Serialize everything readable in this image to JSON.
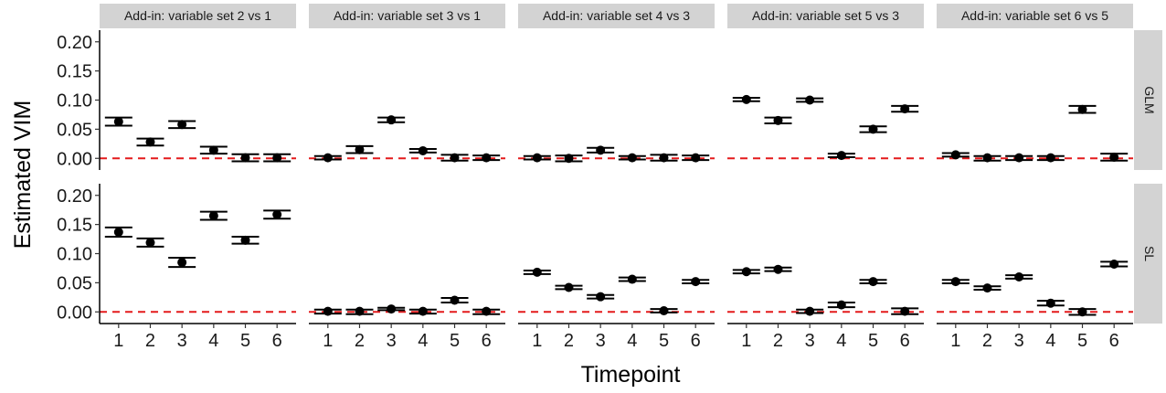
{
  "chart_data": {
    "type": "scatter",
    "subtype": "point-with-errorbars",
    "xlabel": "Timepoint",
    "ylabel": "Estimated VIM",
    "x": [
      1,
      2,
      3,
      4,
      5,
      6
    ],
    "ylim": [
      -0.02,
      0.22
    ],
    "y_ticks": [
      "0.00",
      "0.05",
      "0.10",
      "0.15",
      "0.20"
    ],
    "reference_line": {
      "y": 0,
      "color": "#e41a1c",
      "style": "dashed"
    },
    "point_color": "#000000",
    "strip_color": "#d3d3d3",
    "grid": false,
    "columns": [
      "Add-in: variable set 2 vs 1",
      "Add-in: variable set 3 vs 1",
      "Add-in: variable set 4 vs 3",
      "Add-in: variable set 5 vs 3",
      "Add-in: variable set 6 vs 5"
    ],
    "rows": [
      "GLM",
      "SL"
    ],
    "panels": [
      {
        "row": "GLM",
        "column": "Add-in: variable set 2 vs 1",
        "values": [
          0.063,
          0.028,
          0.058,
          0.014,
          0.001,
          0.001
        ],
        "lower": [
          0.056,
          0.022,
          0.052,
          0.008,
          -0.005,
          -0.005
        ],
        "upper": [
          0.07,
          0.034,
          0.064,
          0.02,
          0.007,
          0.007
        ]
      },
      {
        "row": "GLM",
        "column": "Add-in: variable set 3 vs 1",
        "values": [
          0.001,
          0.015,
          0.066,
          0.013,
          0.001,
          0.001
        ],
        "lower": [
          -0.002,
          0.009,
          0.062,
          0.01,
          -0.004,
          -0.003
        ],
        "upper": [
          0.004,
          0.021,
          0.07,
          0.016,
          0.006,
          0.005
        ]
      },
      {
        "row": "GLM",
        "column": "Add-in: variable set 4 vs 3",
        "values": [
          0.001,
          0.0,
          0.014,
          0.001,
          0.001,
          0.001
        ],
        "lower": [
          -0.002,
          -0.005,
          0.01,
          -0.002,
          -0.004,
          -0.003
        ],
        "upper": [
          0.004,
          0.005,
          0.018,
          0.004,
          0.006,
          0.005
        ]
      },
      {
        "row": "GLM",
        "column": "Add-in: variable set 5 vs 3",
        "values": [
          0.101,
          0.065,
          0.1,
          0.005,
          0.05,
          0.085
        ],
        "lower": [
          0.098,
          0.06,
          0.097,
          0.002,
          0.045,
          0.08
        ],
        "upper": [
          0.104,
          0.07,
          0.103,
          0.008,
          0.055,
          0.09
        ]
      },
      {
        "row": "GLM",
        "column": "Add-in: variable set 6 vs 5",
        "values": [
          0.006,
          0.001,
          0.001,
          0.001,
          0.084,
          0.002
        ],
        "lower": [
          0.003,
          -0.004,
          -0.003,
          -0.003,
          0.078,
          -0.004
        ],
        "upper": [
          0.009,
          0.004,
          0.004,
          0.004,
          0.09,
          0.008
        ]
      },
      {
        "row": "SL",
        "column": "Add-in: variable set 2 vs 1",
        "values": [
          0.137,
          0.119,
          0.085,
          0.165,
          0.123,
          0.167
        ],
        "lower": [
          0.129,
          0.112,
          0.077,
          0.158,
          0.117,
          0.16
        ],
        "upper": [
          0.145,
          0.126,
          0.093,
          0.172,
          0.129,
          0.174
        ]
      },
      {
        "row": "SL",
        "column": "Add-in: variable set 3 vs 1",
        "values": [
          0.001,
          0.001,
          0.005,
          0.001,
          0.02,
          0.001
        ],
        "lower": [
          -0.003,
          -0.004,
          0.003,
          -0.003,
          0.016,
          -0.004
        ],
        "upper": [
          0.004,
          0.004,
          0.007,
          0.004,
          0.024,
          0.004
        ]
      },
      {
        "row": "SL",
        "column": "Add-in: variable set 4 vs 3",
        "values": [
          0.068,
          0.042,
          0.026,
          0.056,
          0.002,
          0.052
        ],
        "lower": [
          0.065,
          0.039,
          0.023,
          0.053,
          -0.001,
          0.049
        ],
        "upper": [
          0.071,
          0.045,
          0.029,
          0.059,
          0.005,
          0.055
        ]
      },
      {
        "row": "SL",
        "column": "Add-in: variable set 5 vs 3",
        "values": [
          0.069,
          0.073,
          0.001,
          0.012,
          0.052,
          0.001
        ],
        "lower": [
          0.066,
          0.07,
          -0.002,
          0.008,
          0.049,
          -0.004
        ],
        "upper": [
          0.072,
          0.076,
          0.004,
          0.016,
          0.055,
          0.006
        ]
      },
      {
        "row": "SL",
        "column": "Add-in: variable set 6 vs 5",
        "values": [
          0.052,
          0.041,
          0.06,
          0.015,
          0.0,
          0.082
        ],
        "lower": [
          0.049,
          0.038,
          0.057,
          0.011,
          -0.005,
          0.078
        ],
        "upper": [
          0.055,
          0.044,
          0.063,
          0.019,
          0.005,
          0.086
        ]
      }
    ]
  }
}
